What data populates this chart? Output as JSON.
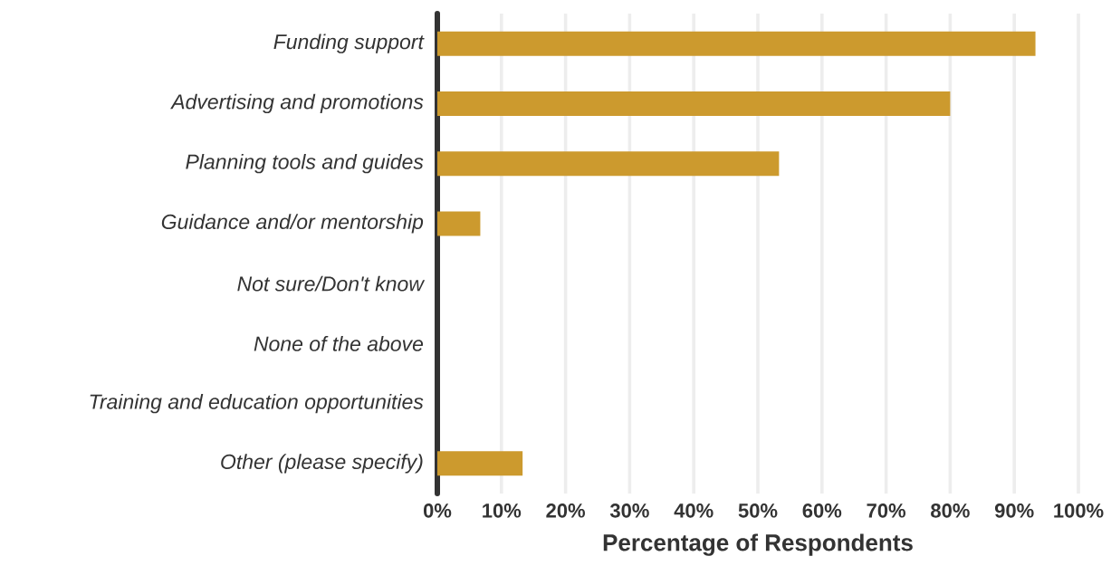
{
  "chart_data": {
    "type": "bar",
    "orientation": "horizontal",
    "xlabel": "Percentage of Respondents",
    "categories": [
      "Funding support",
      "Advertising and promotions",
      "Planning tools and guides",
      "Guidance and/or mentorship",
      "Not sure/Don't know",
      "None of the above",
      "Training and education opportunities",
      "Other (please specify)"
    ],
    "values": [
      93.3,
      80,
      53.3,
      6.7,
      0,
      0,
      0,
      13.3
    ],
    "color": "#cc9a2e",
    "xlim": [
      0,
      100
    ],
    "xticks": [
      {
        "value": 0,
        "label": "0%"
      },
      {
        "value": 10,
        "label": "10%"
      },
      {
        "value": 20,
        "label": "20%"
      },
      {
        "value": 30,
        "label": "30%"
      },
      {
        "value": 40,
        "label": "40%"
      },
      {
        "value": 50,
        "label": "50%"
      },
      {
        "value": 60,
        "label": "60%"
      },
      {
        "value": 70,
        "label": "70%"
      },
      {
        "value": 80,
        "label": "80%"
      },
      {
        "value": 90,
        "label": "90%"
      },
      {
        "value": 100,
        "label": "100%"
      }
    ],
    "grid": "x"
  }
}
